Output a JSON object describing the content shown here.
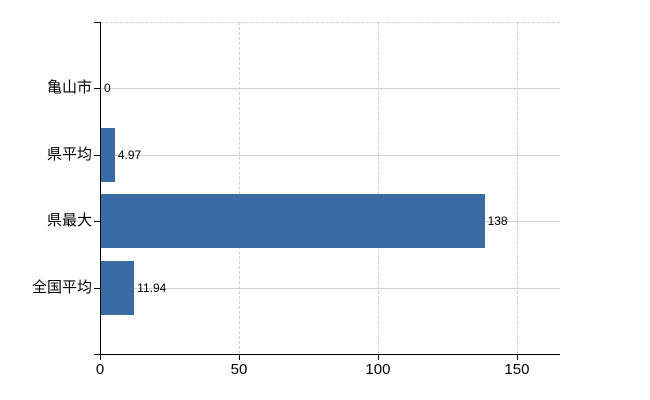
{
  "chart_data": {
    "type": "bar",
    "orientation": "horizontal",
    "title": "",
    "xlabel": "",
    "ylabel": "",
    "categories": [
      "亀山市",
      "県平均",
      "県最大",
      "全国平均"
    ],
    "values": [
      0,
      4.97,
      138,
      11.94
    ],
    "value_labels": [
      "0",
      "4.97",
      "138",
      "11.94"
    ],
    "x_ticks": [
      0,
      50,
      100,
      150
    ],
    "x_tick_labels": [
      "0",
      "50",
      "100",
      "150"
    ],
    "xlim": [
      0,
      165.5
    ],
    "grid": true,
    "legend_position": "none",
    "colors": {
      "bar": "#3B6BA5",
      "axis": "#000000",
      "category_gridline": "#CCD6CC",
      "dashed_gridline": "#D2CCD4",
      "text": "#000000",
      "background": "#FFFFFF"
    }
  }
}
